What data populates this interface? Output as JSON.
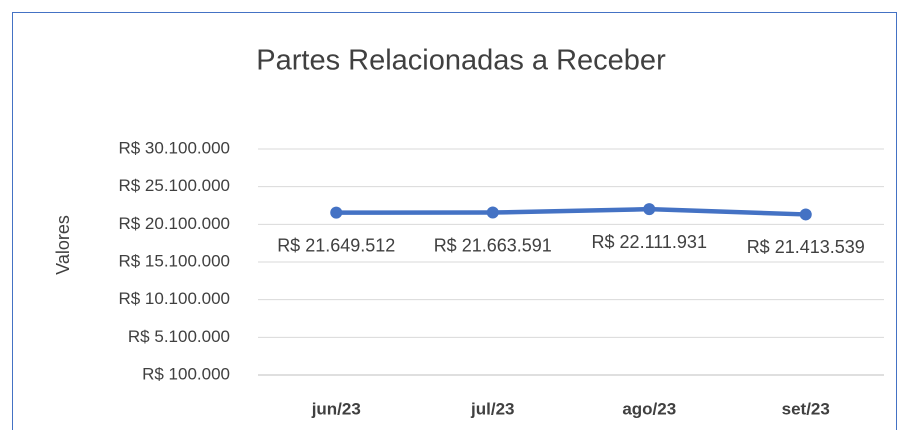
{
  "chart_data": {
    "type": "line",
    "title": "Partes Relacionadas a Receber",
    "y_label": "Valores",
    "categories": [
      "jun/23",
      "jul/23",
      "ago/23",
      "set/23"
    ],
    "series": [
      {
        "name": "Partes Relacionadas a Receber",
        "color": "#4472c4",
        "values": [
          21649512,
          21663591,
          22111931,
          21413539
        ],
        "value_labels": [
          "R$ 21.649.512",
          "R$ 21.663.591",
          "R$ 22.111.931",
          "R$ 21.413.539"
        ]
      }
    ],
    "ylim": [
      100000,
      30100000
    ],
    "yticks": [
      {
        "value": 100000,
        "label": "R$ 100.000"
      },
      {
        "value": 5100000,
        "label": "R$ 5.100.000"
      },
      {
        "value": 10100000,
        "label": "R$ 10.100.000"
      },
      {
        "value": 15100000,
        "label": "R$ 15.100.000"
      },
      {
        "value": 20100000,
        "label": "R$ 20.100.000"
      },
      {
        "value": 25100000,
        "label": "R$ 25.100.000"
      },
      {
        "value": 30100000,
        "label": "R$ 30.100.000"
      }
    ],
    "grid": true
  }
}
